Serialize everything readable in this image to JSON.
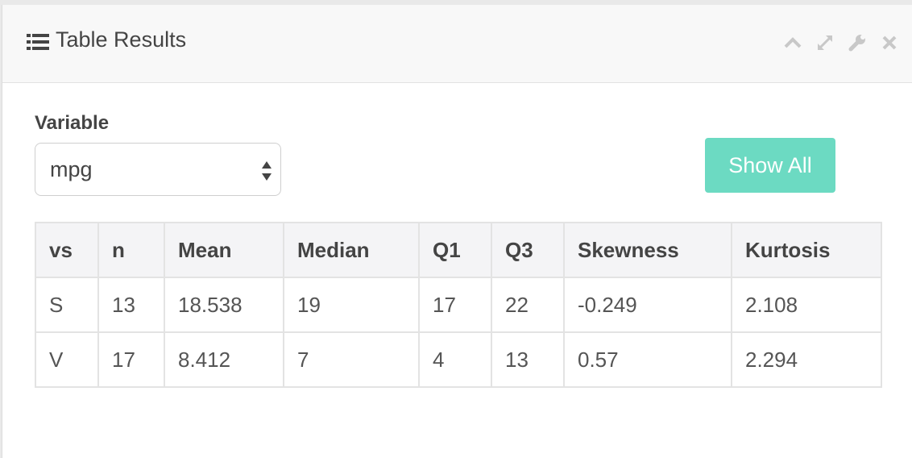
{
  "panel": {
    "title": "Table Results",
    "icons": {
      "title_icon": "list-icon",
      "collapse": "chevron-up-icon",
      "expand": "expand-icon",
      "settings": "wrench-icon",
      "close": "close-icon"
    }
  },
  "controls": {
    "variable_label": "Variable",
    "variable_value": "mpg",
    "show_all_label": "Show All",
    "show_all_color": "#6cdac2"
  },
  "table": {
    "headers": [
      "vs",
      "n",
      "Mean",
      "Median",
      "Q1",
      "Q3",
      "Skewness",
      "Kurtosis"
    ],
    "rows": [
      [
        "S",
        "13",
        "18.538",
        "19",
        "17",
        "22",
        "-0.249",
        "2.108"
      ],
      [
        "V",
        "17",
        "8.412",
        "7",
        "4",
        "13",
        "0.57",
        "2.294"
      ]
    ]
  }
}
